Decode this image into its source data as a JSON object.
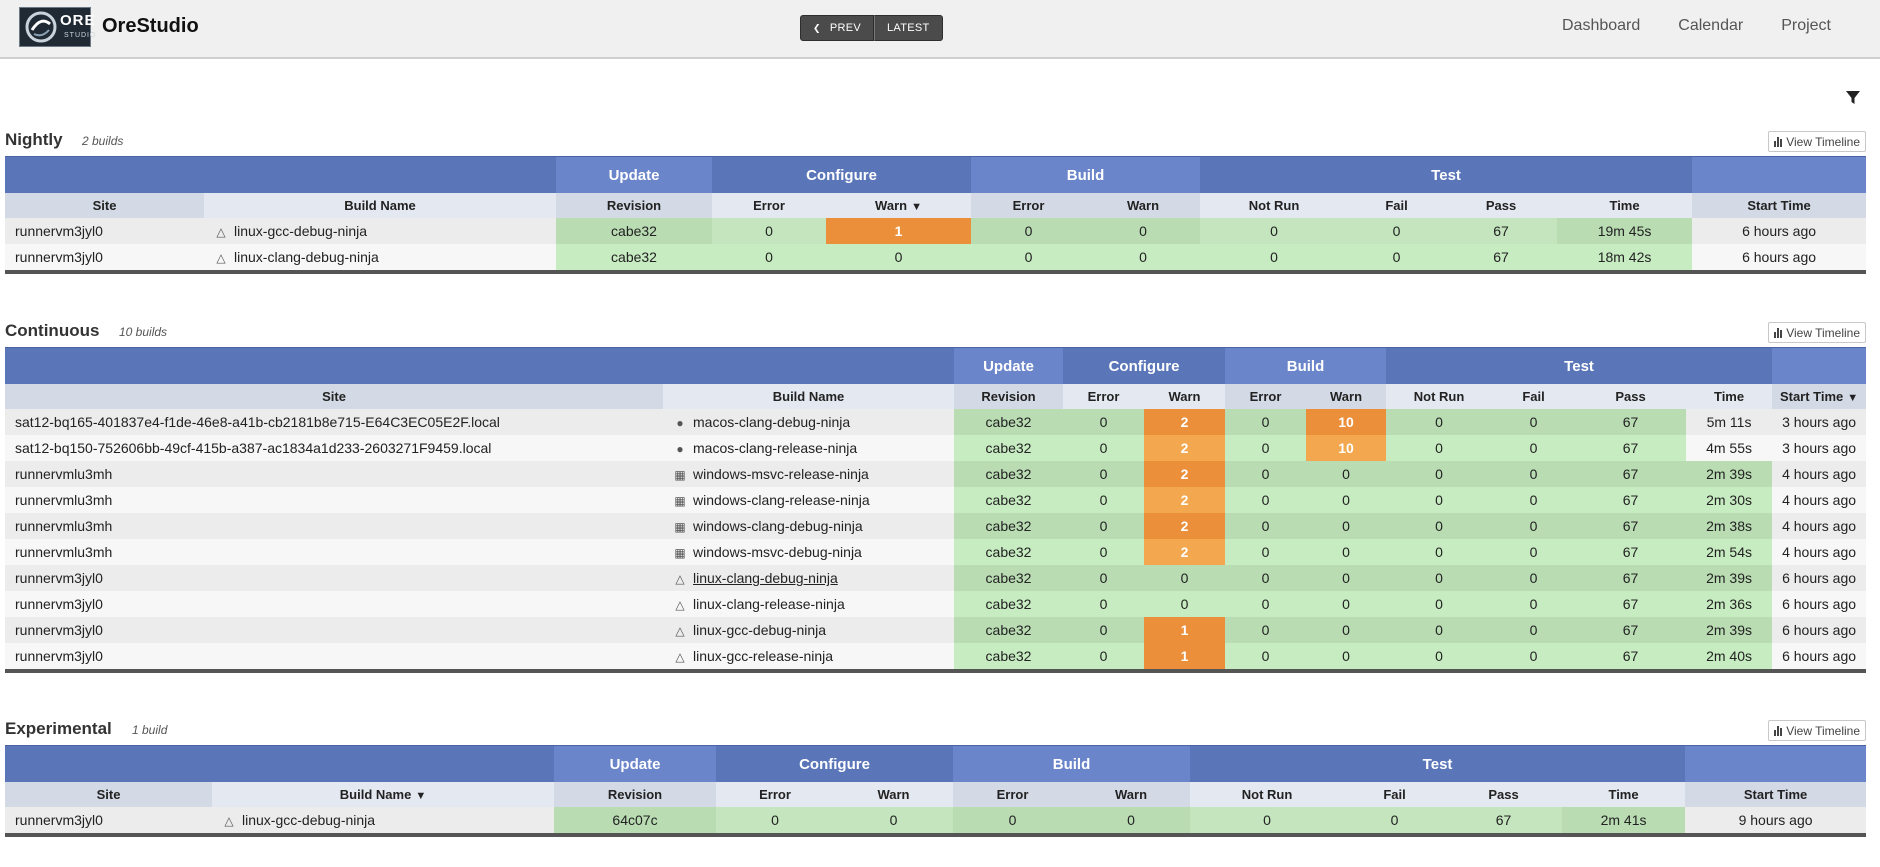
{
  "app": {
    "title": "OreStudio",
    "logo_word": "ORE",
    "logo_sub": "STUDIO"
  },
  "nav": {
    "prev": "PREV",
    "latest": "LATEST"
  },
  "topnav": [
    "Dashboard",
    "Calendar",
    "Project"
  ],
  "view_timeline": "View Timeline",
  "icons": {
    "filter": "filter-icon",
    "linux": "linux-icon",
    "apple": "apple-icon",
    "windows": "windows-icon",
    "timeline": "bar-chart-icon"
  },
  "colors": {
    "header_blue": "#5a76b9",
    "pass_green": "#c8ecc2",
    "warn_orange": "#eb8f3a"
  },
  "headers": {
    "groups": {
      "update": "Update",
      "configure": "Configure",
      "build": "Build",
      "test": "Test"
    },
    "cols": {
      "site": "Site",
      "build_name": "Build Name",
      "revision": "Revision",
      "error": "Error",
      "warn": "Warn",
      "not_run": "Not Run",
      "fail": "Fail",
      "pass": "Pass",
      "time": "Time",
      "start_time": "Start Time"
    }
  },
  "sections": {
    "nightly": {
      "title": "Nightly",
      "count": "2 builds",
      "rows": [
        {
          "site": "runnervm3jyl0",
          "os": "linux",
          "name": "linux-gcc-debug-ninja",
          "revision": "cabe32",
          "cfg_error": "0",
          "cfg_warn": "1",
          "bld_error": "0",
          "bld_warn": "0",
          "not_run": "0",
          "fail": "0",
          "pass": "67",
          "time": "19m 45s",
          "start": "6 hours ago"
        },
        {
          "site": "runnervm3jyl0",
          "os": "linux",
          "name": "linux-clang-debug-ninja",
          "revision": "cabe32",
          "cfg_error": "0",
          "cfg_warn": "0",
          "bld_error": "0",
          "bld_warn": "0",
          "not_run": "0",
          "fail": "0",
          "pass": "67",
          "time": "18m 42s",
          "start": "6 hours ago"
        }
      ]
    },
    "continuous": {
      "title": "Continuous",
      "count": "10 builds",
      "rows": [
        {
          "site": "sat12-bq165-401837e4-f1de-46e8-a41b-cb2181b8e715-E64C3EC05E2F.local",
          "os": "apple",
          "name": "macos-clang-debug-ninja",
          "revision": "cabe32",
          "cfg_error": "0",
          "cfg_warn": "2",
          "bld_error": "0",
          "bld_warn": "10",
          "not_run": "0",
          "fail": "0",
          "pass": "67",
          "time": "5m 11s",
          "start": "3 hours ago"
        },
        {
          "site": "sat12-bq150-752606bb-49cf-415b-a387-ac1834a1d233-2603271F9459.local",
          "os": "apple",
          "name": "macos-clang-release-ninja",
          "revision": "cabe32",
          "cfg_error": "0",
          "cfg_warn": "2",
          "bld_error": "0",
          "bld_warn": "10",
          "not_run": "0",
          "fail": "0",
          "pass": "67",
          "time": "4m 55s",
          "start": "3 hours ago"
        },
        {
          "site": "runnervmlu3mh",
          "os": "windows",
          "name": "windows-msvc-release-ninja",
          "revision": "cabe32",
          "cfg_error": "0",
          "cfg_warn": "2",
          "bld_error": "0",
          "bld_warn": "0",
          "not_run": "0",
          "fail": "0",
          "pass": "67",
          "time": "2m 39s",
          "start": "4 hours ago"
        },
        {
          "site": "runnervmlu3mh",
          "os": "windows",
          "name": "windows-clang-release-ninja",
          "revision": "cabe32",
          "cfg_error": "0",
          "cfg_warn": "2",
          "bld_error": "0",
          "bld_warn": "0",
          "not_run": "0",
          "fail": "0",
          "pass": "67",
          "time": "2m 30s",
          "start": "4 hours ago"
        },
        {
          "site": "runnervmlu3mh",
          "os": "windows",
          "name": "windows-clang-debug-ninja",
          "revision": "cabe32",
          "cfg_error": "0",
          "cfg_warn": "2",
          "bld_error": "0",
          "bld_warn": "0",
          "not_run": "0",
          "fail": "0",
          "pass": "67",
          "time": "2m 38s",
          "start": "4 hours ago"
        },
        {
          "site": "runnervmlu3mh",
          "os": "windows",
          "name": "windows-msvc-debug-ninja",
          "revision": "cabe32",
          "cfg_error": "0",
          "cfg_warn": "2",
          "bld_error": "0",
          "bld_warn": "0",
          "not_run": "0",
          "fail": "0",
          "pass": "67",
          "time": "2m 54s",
          "start": "4 hours ago"
        },
        {
          "site": "runnervm3jyl0",
          "os": "linux",
          "name": "linux-clang-debug-ninja",
          "revision": "cabe32",
          "cfg_error": "0",
          "cfg_warn": "0",
          "bld_error": "0",
          "bld_warn": "0",
          "not_run": "0",
          "fail": "0",
          "pass": "67",
          "time": "2m 39s",
          "start": "6 hours ago"
        },
        {
          "site": "runnervm3jyl0",
          "os": "linux",
          "name": "linux-clang-release-ninja",
          "revision": "cabe32",
          "cfg_error": "0",
          "cfg_warn": "0",
          "bld_error": "0",
          "bld_warn": "0",
          "not_run": "0",
          "fail": "0",
          "pass": "67",
          "time": "2m 36s",
          "start": "6 hours ago"
        },
        {
          "site": "runnervm3jyl0",
          "os": "linux",
          "name": "linux-gcc-debug-ninja",
          "revision": "cabe32",
          "cfg_error": "0",
          "cfg_warn": "1",
          "bld_error": "0",
          "bld_warn": "0",
          "not_run": "0",
          "fail": "0",
          "pass": "67",
          "time": "2m 39s",
          "start": "6 hours ago"
        },
        {
          "site": "runnervm3jyl0",
          "os": "linux",
          "name": "linux-gcc-release-ninja",
          "revision": "cabe32",
          "cfg_error": "0",
          "cfg_warn": "1",
          "bld_error": "0",
          "bld_warn": "0",
          "not_run": "0",
          "fail": "0",
          "pass": "67",
          "time": "2m 40s",
          "start": "6 hours ago"
        }
      ]
    },
    "experimental": {
      "title": "Experimental",
      "count": "1 build",
      "rows": [
        {
          "site": "runnervm3jyl0",
          "os": "linux",
          "name": "linux-gcc-debug-ninja",
          "revision": "64c07c",
          "cfg_error": "0",
          "cfg_warn": "0",
          "bld_error": "0",
          "bld_warn": "0",
          "not_run": "0",
          "fail": "0",
          "pass": "67",
          "time": "2m 41s",
          "start": "9 hours ago"
        }
      ]
    }
  }
}
